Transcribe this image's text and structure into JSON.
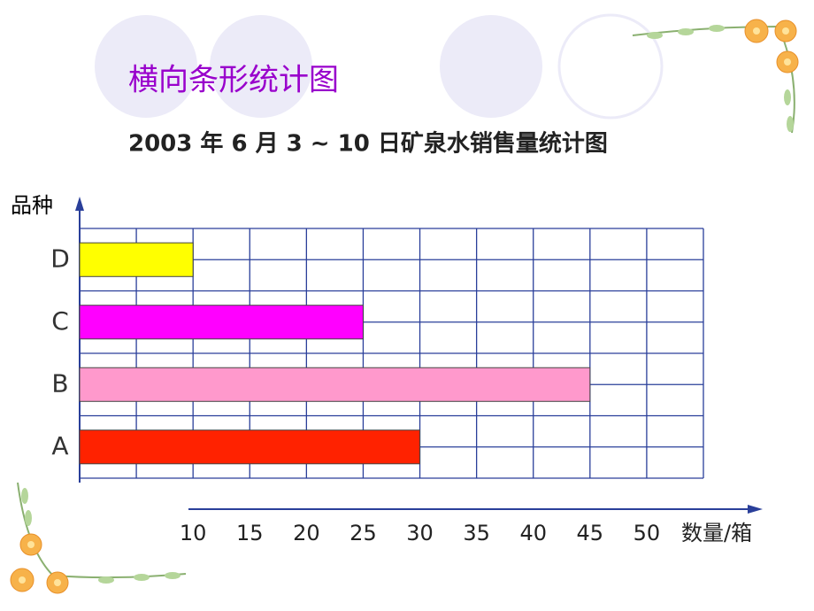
{
  "chart_data": {
    "type": "barh",
    "title": "横向条形统计图",
    "subtitle": "2003 年 6 月 3 ~ 10 日矿泉水销售量统计图",
    "y_label": "品种",
    "x_label": "数量/箱",
    "categories": [
      "A",
      "B",
      "C",
      "D"
    ],
    "values": [
      30,
      45,
      25,
      10
    ],
    "colors": [
      "#ff2200",
      "#ff99cc",
      "#ff00ff",
      "#ffff00"
    ],
    "xlim": [
      0,
      55
    ],
    "xticks": [
      10,
      15,
      20,
      25,
      30,
      35,
      40,
      45,
      50
    ],
    "grid": true
  }
}
